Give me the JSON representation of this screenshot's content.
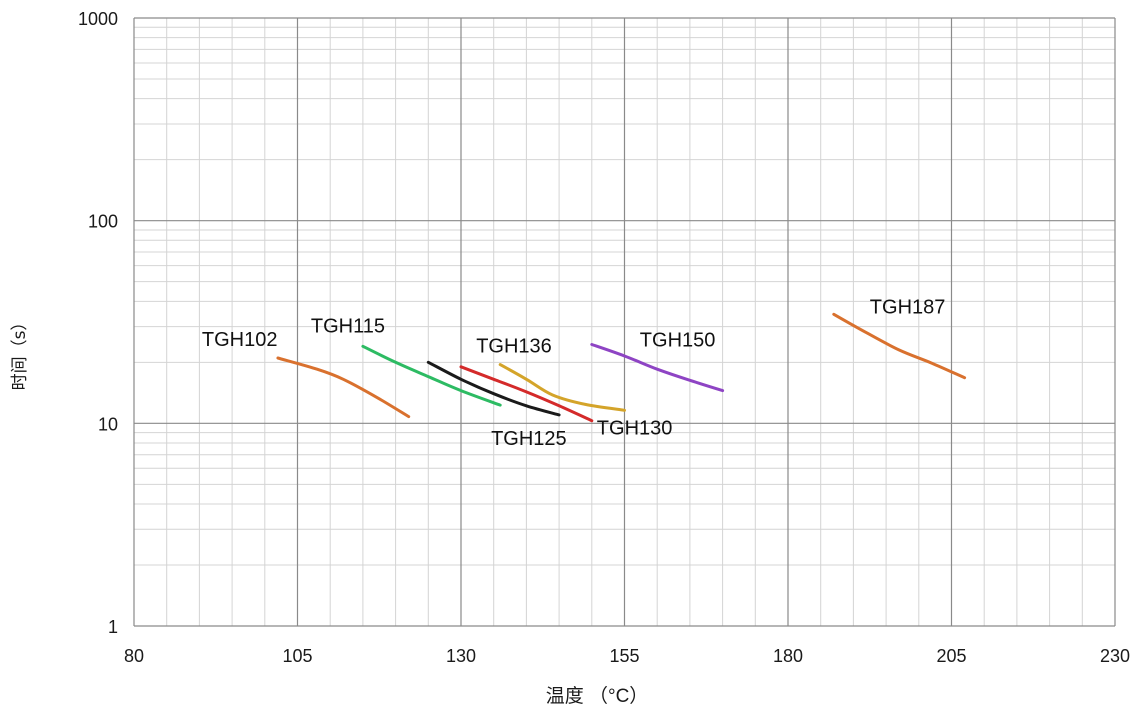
{
  "chart_data": {
    "type": "line",
    "title": "",
    "xlabel": "温度 （°C）",
    "ylabel": "时间（s）",
    "xlim": [
      80,
      230
    ],
    "ylim": [
      1,
      1000
    ],
    "yscale": "log",
    "grid": true,
    "x_ticks": [
      "80",
      "105",
      "130",
      "155",
      "180",
      "205",
      "230"
    ],
    "y_ticks": [
      "1",
      "10",
      "100",
      "1000"
    ],
    "series": [
      {
        "name": "TGH102",
        "color": "#d9712e",
        "x": [
          102,
          108,
          112,
          117,
          122
        ],
        "y": [
          21,
          18.5,
          16.5,
          13.5,
          10.8
        ]
      },
      {
        "name": "TGH115",
        "color": "#2dbb63",
        "x": [
          115,
          120,
          125,
          130,
          136
        ],
        "y": [
          24,
          20,
          17,
          14.5,
          12.3
        ]
      },
      {
        "name": "TGH125",
        "color": "#1a1a1a",
        "x": [
          125,
          130,
          135,
          140,
          145
        ],
        "y": [
          20,
          16.5,
          14,
          12.2,
          11
        ]
      },
      {
        "name": "TGH130",
        "color": "#d42a2a",
        "x": [
          130,
          135,
          140,
          145,
          150
        ],
        "y": [
          19,
          16.5,
          14.3,
          12.2,
          10.3
        ]
      },
      {
        "name": "TGH136",
        "color": "#d4a42a",
        "x": [
          136,
          140,
          144,
          149,
          155
        ],
        "y": [
          19.5,
          16.5,
          13.8,
          12.4,
          11.6
        ]
      },
      {
        "name": "TGH150",
        "color": "#8e44c4",
        "x": [
          150,
          155,
          160,
          165,
          170
        ],
        "y": [
          24.5,
          21.5,
          18.5,
          16.3,
          14.5
        ]
      },
      {
        "name": "TGH187",
        "color": "#d9712e",
        "x": [
          187,
          192,
          197,
          202,
          207
        ],
        "y": [
          34.5,
          28,
          23,
          19.8,
          16.8
        ]
      }
    ],
    "annotations": [
      {
        "text": "TGH102",
        "series": "TGH102"
      },
      {
        "text": "TGH115",
        "series": "TGH115"
      },
      {
        "text": "TGH136",
        "series": "TGH136"
      },
      {
        "text": "TGH150",
        "series": "TGH150"
      },
      {
        "text": "TGH187",
        "series": "TGH187"
      },
      {
        "text": "TGH125",
        "series": "TGH125"
      },
      {
        "text": "TGH130",
        "series": "TGH130"
      }
    ]
  }
}
